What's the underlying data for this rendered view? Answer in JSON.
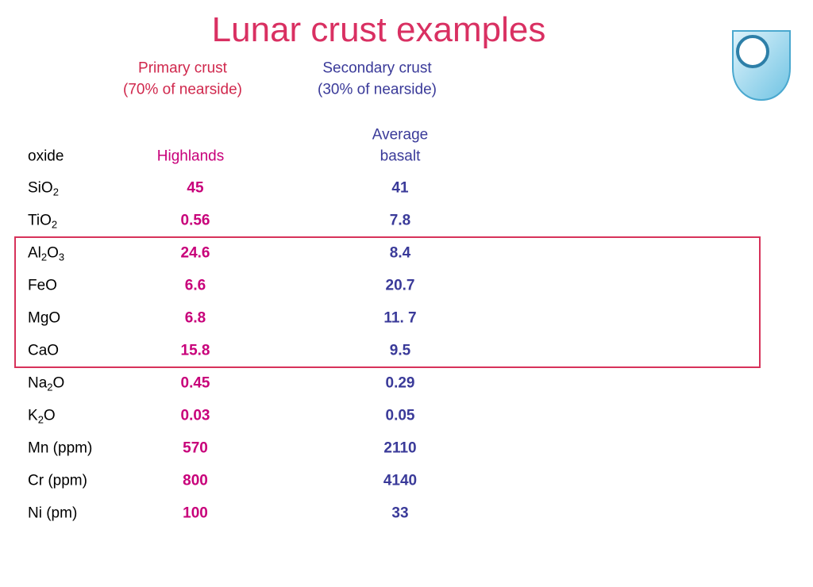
{
  "title": "Lunar crust examples",
  "groups": [
    {
      "line1": "Primary crust",
      "line2": "(70% of nearside)"
    },
    {
      "line1": "Secondary crust",
      "line2": "(30% of nearside)"
    }
  ],
  "table": {
    "header": {
      "oxide": "oxide",
      "col1": "Highlands",
      "col2": [
        "Average",
        "basalt"
      ]
    },
    "rows": [
      {
        "oxide": [
          "SiO",
          "2"
        ],
        "col1": "45",
        "col2": "41"
      },
      {
        "oxide": [
          "TiO",
          "2"
        ],
        "col1": "0.56",
        "col2": "7.8"
      },
      {
        "oxide": [
          "Al",
          "2",
          "O",
          "3"
        ],
        "col1": "24.6",
        "col2": "8.4"
      },
      {
        "oxide": [
          "FeO"
        ],
        "col1": "6.6",
        "col2": "20.7"
      },
      {
        "oxide": [
          "MgO"
        ],
        "col1": "6.8",
        "col2": "11. 7"
      },
      {
        "oxide": [
          "CaO"
        ],
        "col1": "15.8",
        "col2": "9.5"
      },
      {
        "oxide": [
          "Na",
          "2",
          "O"
        ],
        "col1": "0.45",
        "col2": "0.29"
      },
      {
        "oxide": [
          "K",
          "2",
          "O"
        ],
        "col1": "0.03",
        "col2": "0.05"
      },
      {
        "oxide": [
          "Mn (ppm)"
        ],
        "col1": "570",
        "col2": "2110"
      },
      {
        "oxide": [
          "Cr (ppm)"
        ],
        "col1": "800",
        "col2": "4140"
      },
      {
        "oxide": [
          "Ni (pm)"
        ],
        "col1": "100",
        "col2": "33"
      }
    ]
  }
}
